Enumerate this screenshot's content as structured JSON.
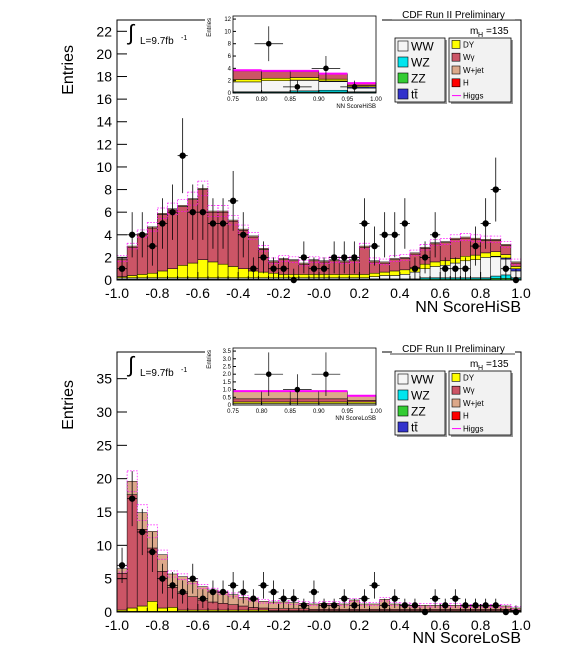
{
  "chart_data": [
    {
      "type": "bar",
      "title": "CDF Run II Preliminary",
      "ylabel": "Entries",
      "xlabel": "NN ScoreHiSB",
      "lumi_label": "L=9.7fb",
      "lumi_sup": "-1",
      "mass_label": "m",
      "mass_sub": "H",
      "mass_value": "=135",
      "xlim": [
        -1.0,
        1.0
      ],
      "ylim": [
        0,
        23
      ],
      "xticks": [
        "-1.0",
        "-0.8",
        "-0.6",
        "-0.4",
        "-0.2",
        "-0.0",
        "0.2",
        "0.4",
        "0.6",
        "0.8",
        "1.0"
      ],
      "yticks": [
        "0",
        "2",
        "4",
        "6",
        "8",
        "10",
        "12",
        "14",
        "16",
        "18",
        "20",
        "22"
      ],
      "n_bins": 40,
      "stack_order": [
        "ZZ",
        "WZ",
        "WW",
        "tt",
        "DY",
        "Wγ",
        "W+jet",
        "H"
      ],
      "series": [
        {
          "name": "ZZ",
          "color": "#33cc33",
          "values": [
            0.05,
            0.05,
            0.05,
            0.05,
            0.05,
            0.05,
            0.05,
            0.05,
            0.05,
            0.05,
            0.05,
            0.05,
            0.05,
            0.05,
            0.05,
            0.05,
            0.05,
            0.05,
            0.05,
            0.05,
            0.05,
            0.05,
            0.05,
            0.05,
            0.05,
            0.05,
            0.05,
            0.05,
            0.05,
            0.05,
            0.1,
            0.1,
            0.1,
            0.1,
            0.1,
            0.1,
            0.1,
            0.15,
            0.15,
            0.1
          ]
        },
        {
          "name": "WZ",
          "color": "#00e5ee",
          "values": [
            0.05,
            0.05,
            0.05,
            0.05,
            0.05,
            0.05,
            0.05,
            0.05,
            0.05,
            0.05,
            0.05,
            0.05,
            0.05,
            0.05,
            0.05,
            0.05,
            0.05,
            0.05,
            0.05,
            0.05,
            0.05,
            0.05,
            0.05,
            0.05,
            0.05,
            0.05,
            0.05,
            0.05,
            0.05,
            0.05,
            0.1,
            0.1,
            0.1,
            0.1,
            0.1,
            0.1,
            0.1,
            0.2,
            0.3,
            0.1
          ]
        },
        {
          "name": "WW",
          "color": "#f5f5f5",
          "values": [
            0.1,
            0.1,
            0.1,
            0.1,
            0.1,
            0.1,
            0.1,
            0.1,
            0.1,
            0.1,
            0.1,
            0.1,
            0.1,
            0.1,
            0.1,
            0.1,
            0.1,
            0.1,
            0.1,
            0.1,
            0.1,
            0.1,
            0.1,
            0.1,
            0.1,
            0.2,
            0.3,
            0.3,
            0.4,
            0.6,
            0.8,
            1.0,
            1.1,
            1.3,
            1.5,
            1.6,
            1.8,
            1.7,
            1.4,
            0.6
          ]
        },
        {
          "name": "tt",
          "color": "#3333cc",
          "values": [
            0,
            0,
            0,
            0,
            0,
            0,
            0,
            0,
            0,
            0,
            0,
            0,
            0,
            0,
            0,
            0,
            0,
            0,
            0,
            0,
            0,
            0,
            0,
            0,
            0,
            0,
            0,
            0,
            0,
            0,
            0,
            0,
            0,
            0,
            0,
            0,
            0,
            0.05,
            0.1,
            0.2
          ]
        },
        {
          "name": "DY",
          "color": "#ffff00",
          "values": [
            0.1,
            0.2,
            0.3,
            0.4,
            0.6,
            0.8,
            1.1,
            1.3,
            1.6,
            1.4,
            1.2,
            1.0,
            0.8,
            0.6,
            0.5,
            0.4,
            0.3,
            0.3,
            0.3,
            0.3,
            0.3,
            0.3,
            0.3,
            0.3,
            0.3,
            0.3,
            0.3,
            0.4,
            0.4,
            0.4,
            0.4,
            0.4,
            0.4,
            0.4,
            0.4,
            0.4,
            0.4,
            0.4,
            0.3,
            0.2
          ]
        },
        {
          "name": "Wγ",
          "color": "#cc5566",
          "values": [
            1.5,
            2.5,
            3.5,
            4.0,
            5.0,
            5.2,
            5.2,
            5.6,
            6.2,
            4.4,
            4.6,
            4.0,
            3.4,
            3.0,
            2.0,
            1.0,
            1.3,
            1.2,
            0.9,
            1.2,
            1.1,
            1.2,
            1.1,
            1.2,
            2.4,
            1.0,
            0.8,
            1.0,
            1.0,
            1.2,
            1.4,
            1.6,
            1.6,
            1.7,
            1.6,
            1.4,
            1.1,
            1.0,
            0.8,
            0.3
          ]
        },
        {
          "name": "W+jet",
          "color": "#dca88a",
          "values": [
            0.1,
            0.1,
            0.1,
            0.1,
            0.1,
            0.1,
            0.1,
            0.1,
            0.1,
            0.1,
            0.1,
            0.1,
            0.1,
            0.1,
            0.1,
            0.1,
            0.1,
            0.1,
            0.1,
            0.1,
            0.1,
            0.1,
            0.1,
            0.1,
            0.1,
            0.1,
            0.1,
            0.1,
            0.1,
            0.1,
            0.1,
            0.1,
            0.1,
            0.1,
            0.1,
            0.1,
            0.1,
            0.1,
            0.1,
            0.1
          ]
        },
        {
          "name": "H",
          "color": "#ff0000",
          "values": [
            0,
            0,
            0,
            0,
            0,
            0,
            0,
            0,
            0,
            0,
            0,
            0,
            0,
            0,
            0,
            0,
            0,
            0,
            0,
            0,
            0,
            0,
            0,
            0,
            0,
            0,
            0,
            0,
            0,
            0,
            0,
            0,
            0,
            0,
            0,
            0,
            0,
            0,
            0,
            0
          ]
        }
      ],
      "data_points": {
        "x": [
          -0.975,
          -0.925,
          -0.875,
          -0.825,
          -0.775,
          -0.725,
          -0.675,
          -0.625,
          -0.575,
          -0.525,
          -0.475,
          -0.425,
          -0.375,
          -0.325,
          -0.275,
          -0.225,
          -0.175,
          -0.125,
          -0.075,
          -0.025,
          0.025,
          0.075,
          0.125,
          0.175,
          0.225,
          0.275,
          0.325,
          0.375,
          0.425,
          0.475,
          0.525,
          0.575,
          0.625,
          0.675,
          0.725,
          0.775,
          0.825,
          0.875,
          0.925,
          0.975
        ],
        "y": [
          1,
          4,
          4,
          3,
          5,
          6,
          11,
          6,
          6,
          5,
          5,
          7,
          4,
          1,
          2,
          1,
          1,
          0,
          2,
          1,
          1,
          2,
          2,
          2,
          5,
          3,
          4,
          4,
          5,
          1,
          2,
          4,
          1,
          1,
          1,
          3,
          5,
          8,
          1,
          0
        ]
      },
      "inset": {
        "xlabel": "NN ScoreHiSB",
        "ylabel": "Entries",
        "xlim": [
          0.75,
          1.0
        ],
        "ylim": [
          0,
          12.5
        ],
        "xticks": [
          "0.75",
          "0.80",
          "0.85",
          "0.90",
          "0.95",
          "1.00"
        ],
        "yticks": [
          "0",
          "2",
          "4",
          "6",
          "8",
          "10",
          "12"
        ],
        "data_x": [
          0.8125,
          0.8625,
          0.9125,
          0.9625
        ],
        "data_y": [
          8,
          1,
          4,
          1
        ]
      }
    },
    {
      "type": "bar",
      "title": "CDF Run II Preliminary",
      "ylabel": "Entries",
      "xlabel": "NN ScoreLoSB",
      "lumi_label": "L=9.7fb",
      "lumi_sup": "-1",
      "mass_label": "m",
      "mass_sub": "H",
      "mass_value": "=135",
      "xlim": [
        -1.0,
        1.0
      ],
      "ylim": [
        0,
        39
      ],
      "xticks": [
        "-1.0",
        "-0.8",
        "-0.6",
        "-0.4",
        "-0.2",
        "-0.0",
        "0.2",
        "0.4",
        "0.6",
        "0.8",
        "1.0"
      ],
      "yticks": [
        "0",
        "5",
        "10",
        "15",
        "20",
        "25",
        "30",
        "35"
      ],
      "n_bins": 40,
      "stack_order": [
        "ZZ",
        "WZ",
        "WW",
        "tt",
        "DY",
        "Wγ",
        "W+jet",
        "H"
      ],
      "series": [
        {
          "name": "ZZ",
          "color": "#33cc33",
          "values": [
            0,
            0,
            0,
            0,
            0,
            0,
            0,
            0,
            0,
            0,
            0,
            0,
            0,
            0,
            0,
            0,
            0,
            0,
            0,
            0,
            0,
            0,
            0,
            0,
            0,
            0,
            0,
            0,
            0,
            0,
            0,
            0,
            0,
            0,
            0,
            0,
            0,
            0,
            0,
            0
          ]
        },
        {
          "name": "WZ",
          "color": "#00e5ee",
          "values": [
            0,
            0,
            0,
            0,
            0,
            0,
            0,
            0,
            0,
            0,
            0,
            0,
            0,
            0,
            0,
            0,
            0,
            0,
            0,
            0,
            0,
            0,
            0,
            0,
            0,
            0,
            0,
            0,
            0,
            0,
            0,
            0,
            0,
            0,
            0,
            0,
            0,
            0,
            0,
            0
          ]
        },
        {
          "name": "WW",
          "color": "#f5f5f5",
          "values": [
            0.1,
            0.1,
            0.1,
            0.1,
            0.1,
            0.1,
            0.1,
            0.1,
            0.1,
            0.1,
            0.1,
            0.1,
            0.1,
            0.1,
            0.1,
            0.1,
            0.1,
            0.1,
            0.1,
            0.1,
            0.1,
            0.1,
            0.1,
            0.1,
            0.1,
            0.1,
            0.1,
            0.1,
            0.1,
            0.1,
            0.1,
            0.1,
            0.1,
            0.1,
            0.1,
            0.1,
            0.1,
            0.1,
            0.1,
            0.1
          ]
        },
        {
          "name": "tt",
          "color": "#3333cc",
          "values": [
            0,
            0,
            0,
            0,
            0,
            0,
            0,
            0,
            0,
            0,
            0,
            0,
            0,
            0,
            0,
            0,
            0,
            0,
            0,
            0,
            0,
            0,
            0,
            0,
            0,
            0,
            0,
            0,
            0,
            0,
            0,
            0,
            0,
            0,
            0,
            0,
            0,
            0,
            0,
            0
          ]
        },
        {
          "name": "DY",
          "color": "#ffff00",
          "values": [
            0.2,
            0.5,
            0.8,
            1.5,
            0.5,
            0.6,
            0.2,
            0.2,
            0.2,
            0.2,
            0.2,
            0.2,
            0.2,
            0.2,
            0.2,
            0.1,
            0.1,
            0.1,
            0.1,
            0.1,
            0.1,
            0.1,
            0.1,
            0.1,
            0.1,
            0.1,
            0.1,
            0.1,
            0.1,
            0.1,
            0.1,
            0.1,
            0.1,
            0.1,
            0.1,
            0.1,
            0.1,
            0.1,
            0.1,
            0.1
          ]
        },
        {
          "name": "Wγ",
          "color": "#cc5566",
          "values": [
            5.5,
            17.0,
            11.5,
            8.0,
            5.5,
            3.0,
            2.5,
            2.0,
            1.5,
            1.2,
            1.0,
            0.8,
            0.6,
            0.4,
            0.3,
            0.3,
            0.3,
            0.3,
            0.3,
            0.2,
            0.2,
            0.2,
            0.2,
            0.2,
            0.2,
            0.2,
            0.2,
            0.2,
            0.2,
            0.2,
            0.2,
            0.2,
            0.2,
            0.2,
            0.2,
            0.2,
            0.2,
            0.2,
            0.2,
            0.1
          ]
        },
        {
          "name": "W+jet",
          "color": "#dca88a",
          "values": [
            0.7,
            2.0,
            2.5,
            2.5,
            2.5,
            2.0,
            2.5,
            2.3,
            2.0,
            1.8,
            1.6,
            1.5,
            1.3,
            1.2,
            1.0,
            1.0,
            1.0,
            0.9,
            0.8,
            0.8,
            0.9,
            0.9,
            0.8,
            1.4,
            0.8,
            0.8,
            1.5,
            0.8,
            0.7,
            0.6,
            0.6,
            0.6,
            0.6,
            0.6,
            0.5,
            0.5,
            0.5,
            0.5,
            0.5,
            0.3
          ]
        },
        {
          "name": "H",
          "color": "#ff0000",
          "values": [
            0,
            0,
            0,
            0,
            0,
            0,
            0,
            0,
            0,
            0,
            0,
            0,
            0,
            0,
            0,
            0,
            0,
            0,
            0,
            0,
            0,
            0,
            0,
            0,
            0,
            0,
            0,
            0,
            0,
            0,
            0,
            0,
            0,
            0,
            0,
            0,
            0,
            0,
            0,
            0
          ]
        }
      ],
      "data_points": {
        "x": [
          -0.975,
          -0.925,
          -0.875,
          -0.825,
          -0.775,
          -0.725,
          -0.675,
          -0.625,
          -0.575,
          -0.525,
          -0.475,
          -0.425,
          -0.375,
          -0.325,
          -0.275,
          -0.225,
          -0.175,
          -0.125,
          -0.075,
          -0.025,
          0.025,
          0.075,
          0.125,
          0.175,
          0.225,
          0.275,
          0.325,
          0.375,
          0.425,
          0.475,
          0.525,
          0.575,
          0.625,
          0.675,
          0.725,
          0.775,
          0.825,
          0.875,
          0.925,
          0.975
        ],
        "y": [
          7,
          17,
          12,
          9,
          5,
          4,
          3,
          5,
          2,
          3,
          3,
          4,
          3,
          2,
          4,
          3,
          2,
          2,
          1,
          3,
          1,
          1,
          2,
          1,
          2,
          4,
          1,
          2,
          1,
          1,
          0,
          2,
          1,
          2,
          1,
          1,
          1,
          1,
          0,
          0
        ]
      },
      "inset": {
        "xlabel": "NN ScoreLoSB",
        "ylabel": "Entries",
        "xlim": [
          0.75,
          1.0
        ],
        "ylim": [
          0,
          3.7
        ],
        "xticks": [
          "0.75",
          "0.80",
          "0.85",
          "0.90",
          "0.95",
          "1.00"
        ],
        "yticks": [
          "0",
          "0.5",
          "1.0",
          "1.5",
          "2.0",
          "2.5",
          "3.0",
          "3.5"
        ],
        "data_x": [
          0.8125,
          0.8625,
          0.9125
        ],
        "data_y": [
          2,
          1,
          2
        ]
      }
    }
  ],
  "legend": {
    "left": [
      {
        "label": "WW",
        "color": "#f5f5f5"
      },
      {
        "label": "WZ",
        "color": "#00e5ee"
      },
      {
        "label": "ZZ",
        "color": "#33cc33"
      },
      {
        "label": "tt̄",
        "color": "#3333cc"
      }
    ],
    "right": [
      {
        "label": "DY",
        "color": "#ffff00"
      },
      {
        "label": "Wγ",
        "color": "#cc5566"
      },
      {
        "label": "W+jet",
        "color": "#dca88a"
      },
      {
        "label": "H",
        "color": "#ff0000"
      },
      {
        "label": "Higgs",
        "color": "#ff00ff",
        "line": true
      }
    ]
  }
}
